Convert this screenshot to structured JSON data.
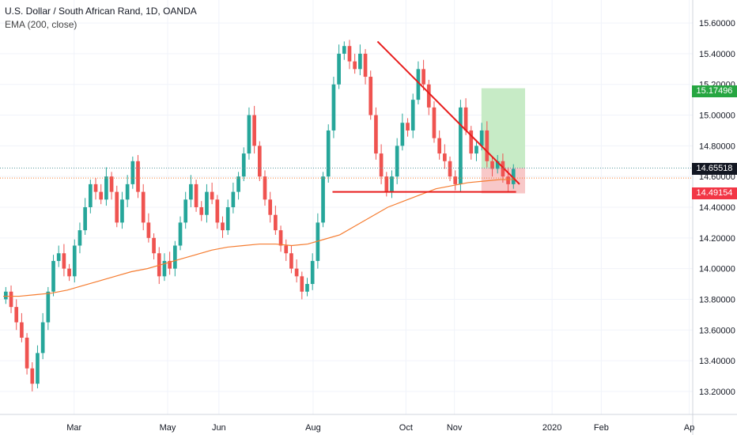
{
  "legend": {
    "title": "U.S. Dollar / South African Rand, 1D, OANDA",
    "indicator": "EMA (200, close)"
  },
  "colors": {
    "up": "#26a69a",
    "down": "#ef5350",
    "ema": "#f57c30",
    "trendline": "#e81b1b",
    "target_zone": "#c7ebc6",
    "stop_zone": "#f8c8c8",
    "grid": "#f0f3fa",
    "axis_text": "#131722"
  },
  "price_tags": {
    "target": "15.17496",
    "current": "14.65518",
    "stop": "14.49154"
  },
  "chart_data": {
    "type": "candlestick",
    "ylim": [
      13.05,
      15.75
    ],
    "y_ticks": [
      "15.60000",
      "15.40000",
      "15.20000",
      "15.00000",
      "14.80000",
      "14.60000",
      "14.40000",
      "14.20000",
      "14.00000",
      "13.80000",
      "13.60000",
      "13.40000",
      "13.20000"
    ],
    "x_ticks": [
      "Mar",
      "May",
      "Jun",
      "Aug",
      "Oct",
      "Nov",
      "2020",
      "Feb",
      "Ap"
    ],
    "closes": [
      13.85,
      13.75,
      13.65,
      13.55,
      13.35,
      13.25,
      13.45,
      13.65,
      13.85,
      14.05,
      14.1,
      14.0,
      13.95,
      14.15,
      14.25,
      14.4,
      14.55,
      14.5,
      14.45,
      14.6,
      14.5,
      14.3,
      14.45,
      14.55,
      14.7,
      14.5,
      14.3,
      14.2,
      14.1,
      13.95,
      14.05,
      14.0,
      14.15,
      14.3,
      14.45,
      14.55,
      14.4,
      14.35,
      14.5,
      14.45,
      14.3,
      14.25,
      14.4,
      14.5,
      14.6,
      14.75,
      15.0,
      14.8,
      14.6,
      14.45,
      14.35,
      14.25,
      14.15,
      14.1,
      14.0,
      13.95,
      13.85,
      13.9,
      14.05,
      14.3,
      14.6,
      14.9,
      15.2,
      15.4,
      15.45,
      15.35,
      15.3,
      15.4,
      15.25,
      15.0,
      14.75,
      14.6,
      14.5,
      14.6,
      14.8,
      14.95,
      14.9,
      15.1,
      15.3,
      15.2,
      15.05,
      14.85,
      14.75,
      14.7,
      14.6,
      14.55,
      15.05,
      14.9,
      14.75,
      14.8,
      14.9,
      14.7,
      14.65,
      14.7,
      14.6,
      14.55,
      14.65
    ],
    "ema": [
      13.82,
      13.82,
      13.83,
      13.84,
      13.86,
      13.89,
      13.92,
      13.95,
      13.98,
      14.0,
      14.03,
      14.06,
      14.09,
      14.12,
      14.14,
      14.15,
      14.16,
      14.16,
      14.15,
      14.16,
      14.19,
      14.22,
      14.28,
      14.34,
      14.4,
      14.44,
      14.48,
      14.52,
      14.54,
      14.56,
      14.57,
      14.58,
      14.58
    ],
    "trendline": {
      "start": [
        15.48,
        0.545
      ],
      "end": [
        14.55,
        0.75
      ]
    },
    "support_line": {
      "price": 14.5,
      "x_start": 0.48,
      "x_end": 0.745
    },
    "targets": {
      "entry": 14.655,
      "target": 15.175,
      "stop": 14.49,
      "x_start": 0.695,
      "x_end": 0.758
    }
  }
}
